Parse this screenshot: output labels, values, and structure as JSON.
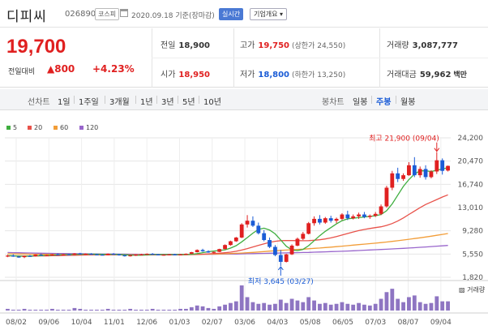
{
  "header": {
    "stock_name": "디피씨",
    "stock_code": "026890",
    "market_badge": "코스피",
    "date_text": "2020.09.18 기준(장마감)",
    "realtime_button": "실시간",
    "company_info_button": "기업개요 ▾"
  },
  "summary": {
    "current_price": "19,700",
    "change_label": "전일대비",
    "change_value": "▲800",
    "change_pct": "+4.23%",
    "prev_close": {
      "label": "전일",
      "value": "18,900"
    },
    "high": {
      "label": "고가",
      "value": "19,750",
      "sub": "(상한가 24,550)"
    },
    "volume": {
      "label": "거래량",
      "value": "3,087,777"
    },
    "open": {
      "label": "시가",
      "value": "18,950"
    },
    "low": {
      "label": "저가",
      "value": "18,800",
      "sub": "(하한가 13,250)"
    },
    "amount": {
      "label": "거래대금",
      "value": "59,962",
      "unit": "백만"
    }
  },
  "tabs": {
    "line_label": "선차트",
    "line_periods": [
      "1일",
      "1주일",
      "3개월",
      "1년",
      "3년",
      "5년",
      "10년"
    ],
    "candle_label": "봉차트",
    "candle_periods": [
      "일봉",
      "주봉",
      "월봉"
    ],
    "active_candle": "주봉"
  },
  "colors": {
    "up": "#e02020",
    "down": "#1b5cd6",
    "ma5": "#3fae3f",
    "ma20": "#e8524a",
    "ma60": "#f29d38",
    "ma120": "#9966cc",
    "volume": "#8e75c2"
  },
  "chart_data": {
    "type": "candlestick",
    "legend": [
      {
        "name": "5",
        "color": "#3fae3f"
      },
      {
        "name": "20",
        "color": "#e8524a"
      },
      {
        "name": "60",
        "color": "#f29d38"
      },
      {
        "name": "120",
        "color": "#9966cc"
      }
    ],
    "y_ticks": [
      "24,200",
      "20,470",
      "16,740",
      "13,010",
      "9,280",
      "5,550",
      "1,820"
    ],
    "ylim": [
      1820,
      24200
    ],
    "x_ticks": [
      "08/02",
      "09/06",
      "10/04",
      "11/01",
      "12/06",
      "01/03",
      "02/07",
      "03/06",
      "04/03",
      "05/08",
      "06/05",
      "07/03",
      "08/07",
      "09/04"
    ],
    "volume_label": "거래량",
    "annotations": [
      {
        "text": "최고 21,900 (09/04)",
        "value": 21900,
        "color": "#e02020"
      },
      {
        "text": "최저 3,645 (03/27)",
        "value": 3645,
        "color": "#1b5cd6"
      }
    ],
    "candles": [
      [
        5200,
        5450,
        5050,
        5300
      ],
      [
        5300,
        5500,
        5100,
        5150
      ],
      [
        5150,
        5250,
        4950,
        5050
      ],
      [
        5050,
        5300,
        4900,
        5250
      ],
      [
        5250,
        5400,
        5100,
        5200
      ],
      [
        5200,
        5500,
        5150,
        5450
      ],
      [
        5450,
        5600,
        5300,
        5350
      ],
      [
        5350,
        5450,
        5250,
        5400
      ],
      [
        5400,
        5550,
        5300,
        5500
      ],
      [
        5500,
        5650,
        5400,
        5450
      ],
      [
        5450,
        5550,
        5350,
        5500
      ],
      [
        5500,
        5600,
        5400,
        5450
      ],
      [
        5450,
        5700,
        5400,
        5650
      ],
      [
        5650,
        5750,
        5500,
        5550
      ],
      [
        5550,
        5650,
        5450,
        5600
      ],
      [
        5600,
        5700,
        5450,
        5500
      ],
      [
        5500,
        5600,
        5350,
        5450
      ],
      [
        5450,
        5550,
        5350,
        5400
      ],
      [
        5400,
        5650,
        5350,
        5600
      ],
      [
        5600,
        5700,
        5450,
        5500
      ],
      [
        5500,
        5600,
        5300,
        5350
      ],
      [
        5350,
        5450,
        5150,
        5200
      ],
      [
        5200,
        5400,
        5150,
        5350
      ],
      [
        5350,
        5500,
        5250,
        5450
      ],
      [
        5450,
        5600,
        5400,
        5500
      ],
      [
        5500,
        5650,
        5400,
        5600
      ],
      [
        5600,
        5700,
        5450,
        5500
      ],
      [
        5500,
        5550,
        5350,
        5400
      ],
      [
        5400,
        5500,
        5300,
        5450
      ],
      [
        5450,
        5550,
        5350,
        5500
      ],
      [
        5500,
        5600,
        5400,
        5450
      ],
      [
        5450,
        5550,
        5400,
        5500
      ],
      [
        5500,
        5650,
        5450,
        5600
      ],
      [
        5600,
        5900,
        5550,
        5850
      ],
      [
        5850,
        6300,
        5800,
        6200
      ],
      [
        6200,
        6400,
        5900,
        6000
      ],
      [
        6000,
        6150,
        5750,
        5800
      ],
      [
        5800,
        5950,
        5650,
        5900
      ],
      [
        5900,
        6400,
        5850,
        6350
      ],
      [
        6350,
        7100,
        6300,
        7000
      ],
      [
        7000,
        7700,
        6900,
        7600
      ],
      [
        7600,
        8300,
        7500,
        8200
      ],
      [
        8200,
        10500,
        8100,
        10300
      ],
      [
        10300,
        11800,
        9800,
        10900
      ],
      [
        10900,
        11600,
        9900,
        10100
      ],
      [
        10100,
        10600,
        8700,
        8900
      ],
      [
        8900,
        9400,
        7600,
        7800
      ],
      [
        7800,
        8200,
        6500,
        6700
      ],
      [
        6700,
        7000,
        5200,
        5400
      ],
      [
        5400,
        6200,
        3645,
        4300
      ],
      [
        4300,
        5600,
        4200,
        5500
      ],
      [
        5500,
        7100,
        5400,
        6900
      ],
      [
        6900,
        8200,
        6800,
        8000
      ],
      [
        8000,
        9100,
        7800,
        8800
      ],
      [
        8800,
        10700,
        8700,
        10500
      ],
      [
        10500,
        11600,
        10100,
        11200
      ],
      [
        11200,
        11800,
        10300,
        10600
      ],
      [
        10600,
        11500,
        10400,
        11300
      ],
      [
        11300,
        11700,
        10600,
        10900
      ],
      [
        10900,
        11400,
        10500,
        11200
      ],
      [
        11200,
        12100,
        11000,
        11900
      ],
      [
        11900,
        12500,
        11000,
        11300
      ],
      [
        11300,
        11900,
        11100,
        11600
      ],
      [
        11600,
        12200,
        11200,
        11900
      ],
      [
        11900,
        12300,
        11300,
        11500
      ],
      [
        11500,
        11900,
        11200,
        11700
      ],
      [
        11700,
        12300,
        11500,
        12000
      ],
      [
        12000,
        13500,
        11800,
        13200
      ],
      [
        13200,
        16500,
        13000,
        16200
      ],
      [
        16200,
        18900,
        15800,
        18500
      ],
      [
        18500,
        19400,
        17100,
        17600
      ],
      [
        17600,
        18500,
        17300,
        18200
      ],
      [
        18200,
        20300,
        18100,
        19800
      ],
      [
        19800,
        21100,
        17900,
        18200
      ],
      [
        18200,
        19600,
        17800,
        19200
      ],
      [
        19200,
        19800,
        17500,
        17900
      ],
      [
        17900,
        19000,
        17700,
        18800
      ],
      [
        18800,
        21900,
        18400,
        20600
      ],
      [
        20600,
        20900,
        18300,
        18900
      ],
      [
        18950,
        19750,
        18800,
        19700
      ]
    ],
    "ma5": [
      5300,
      5280,
      5220,
      5200,
      5230,
      5270,
      5300,
      5340,
      5380,
      5420,
      5450,
      5470,
      5500,
      5520,
      5530,
      5540,
      5530,
      5510,
      5510,
      5520,
      5490,
      5440,
      5380,
      5350,
      5370,
      5420,
      5470,
      5480,
      5480,
      5470,
      5460,
      5470,
      5480,
      5520,
      5620,
      5780,
      5930,
      6030,
      6130,
      6230,
      6500,
      6900,
      7500,
      8200,
      8900,
      9500,
      9700,
      9400,
      8800,
      7800,
      6800,
      6200,
      6100,
      6300,
      6900,
      7700,
      8500,
      9200,
      9800,
      10400,
      10900,
      11200,
      11300,
      11400,
      11500,
      11600,
      11700,
      11900,
      12500,
      13600,
      15000,
      16400,
      17500,
      18400,
      18900,
      18900,
      18800,
      19000,
      19200,
      19400
    ],
    "ma20": [
      5250,
      5250,
      5240,
      5230,
      5230,
      5240,
      5250,
      5260,
      5280,
      5300,
      5320,
      5340,
      5360,
      5380,
      5400,
      5410,
      5420,
      5430,
      5430,
      5440,
      5440,
      5430,
      5420,
      5410,
      5400,
      5400,
      5410,
      5420,
      5420,
      5420,
      5420,
      5430,
      5440,
      5460,
      5490,
      5530,
      5580,
      5630,
      5690,
      5760,
      5860,
      6000,
      6190,
      6420,
      6680,
      6950,
      7200,
      7430,
      7600,
      7700,
      7730,
      7720,
      7700,
      7690,
      7700,
      7760,
      7850,
      7980,
      8150,
      8360,
      8600,
      8850,
      9100,
      9320,
      9500,
      9650,
      9790,
      9930,
      10150,
      10450,
      10850,
      11350,
      11900,
      12450,
      13000,
      13500,
      13900,
      14300,
      14700,
      15050
    ],
    "ma60": [
      5600,
      5580,
      5560,
      5550,
      5530,
      5520,
      5510,
      5500,
      5490,
      5480,
      5480,
      5470,
      5470,
      5460,
      5460,
      5460,
      5460,
      5450,
      5450,
      5450,
      5450,
      5440,
      5440,
      5440,
      5440,
      5440,
      5440,
      5440,
      5440,
      5450,
      5450,
      5460,
      5470,
      5480,
      5490,
      5510,
      5530,
      5550,
      5570,
      5600,
      5630,
      5670,
      5710,
      5760,
      5820,
      5880,
      5950,
      6020,
      6080,
      6140,
      6190,
      6240,
      6290,
      6340,
      6400,
      6460,
      6520,
      6590,
      6660,
      6740,
      6820,
      6900,
      6980,
      7060,
      7140,
      7220,
      7300,
      7390,
      7480,
      7580,
      7690,
      7800,
      7920,
      8040,
      8160,
      8290,
      8420,
      8560,
      8700,
      8850
    ],
    "ma120": [
      5800,
      5780,
      5760,
      5740,
      5720,
      5700,
      5690,
      5670,
      5660,
      5640,
      5630,
      5620,
      5610,
      5600,
      5590,
      5580,
      5570,
      5560,
      5560,
      5550,
      5540,
      5540,
      5530,
      5530,
      5520,
      5520,
      5510,
      5510,
      5510,
      5500,
      5500,
      5500,
      5500,
      5500,
      5500,
      5510,
      5510,
      5520,
      5530,
      5540,
      5550,
      5560,
      5580,
      5600,
      5620,
      5640,
      5660,
      5680,
      5700,
      5720,
      5740,
      5760,
      5780,
      5800,
      5820,
      5850,
      5880,
      5910,
      5940,
      5970,
      6000,
      6040,
      6080,
      6120,
      6160,
      6200,
      6240,
      6280,
      6320,
      6370,
      6420,
      6470,
      6520,
      6570,
      6630,
      6690,
      6750,
      6810,
      6870,
      6930
    ],
    "volume": [
      2,
      1,
      1,
      2,
      1,
      1,
      1,
      1,
      2,
      1,
      1,
      1,
      3,
      2,
      1,
      1,
      1,
      1,
      2,
      1,
      1,
      1,
      2,
      1,
      1,
      1,
      2,
      1,
      1,
      1,
      1,
      2,
      2,
      4,
      6,
      5,
      3,
      2,
      5,
      7,
      9,
      11,
      30,
      16,
      10,
      8,
      9,
      7,
      8,
      13,
      9,
      14,
      12,
      10,
      16,
      12,
      8,
      9,
      7,
      8,
      10,
      8,
      7,
      9,
      7,
      6,
      8,
      14,
      22,
      26,
      14,
      10,
      16,
      18,
      10,
      8,
      9,
      17,
      11,
      11
    ]
  }
}
